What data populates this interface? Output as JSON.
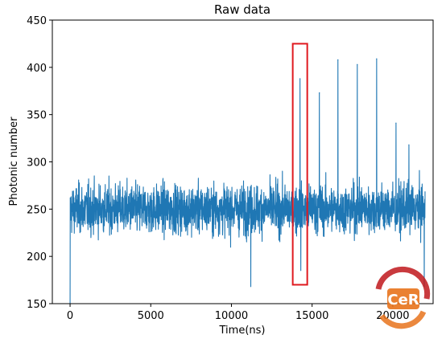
{
  "chart_data": {
    "type": "line",
    "title": "Raw data",
    "xlabel": "Time(ns)",
    "ylabel": "Photonic number",
    "xlim": [
      -1100,
      22500
    ],
    "ylim": [
      150,
      450
    ],
    "x_ticks": [
      0,
      5000,
      10000,
      15000,
      20000
    ],
    "x_tick_labels": [
      "0",
      "5000",
      "10000",
      "15000",
      "20000"
    ],
    "y_ticks": [
      150,
      200,
      250,
      300,
      350,
      400,
      450
    ],
    "y_tick_labels": [
      "150",
      "200",
      "250",
      "300",
      "350",
      "400",
      "450"
    ],
    "grid": false,
    "series": [
      {
        "color": "#1f77b4",
        "x_start": 0,
        "x_end": 22000,
        "baseline_mean": 250,
        "baseline_min": 175,
        "baseline_max": 315,
        "first_value": 150,
        "peaks": [
          {
            "x": 14250,
            "y": 388
          },
          {
            "x": 15450,
            "y": 373
          },
          {
            "x": 16600,
            "y": 408
          },
          {
            "x": 17800,
            "y": 403
          },
          {
            "x": 19000,
            "y": 409
          },
          {
            "x": 20200,
            "y": 341
          },
          {
            "x": 21000,
            "y": 318
          }
        ],
        "dips": [
          {
            "x": 11200,
            "y": 168
          },
          {
            "x": 14300,
            "y": 185
          },
          {
            "x": 21950,
            "y": 168
          }
        ]
      }
    ],
    "highlight_box": {
      "x0": 13800,
      "x1": 14700,
      "y0": 170,
      "y1": 425,
      "color": "#e0191f"
    }
  },
  "watermark": {
    "text": "CeR",
    "colors": [
      "#c0171c",
      "#e8731c"
    ]
  }
}
